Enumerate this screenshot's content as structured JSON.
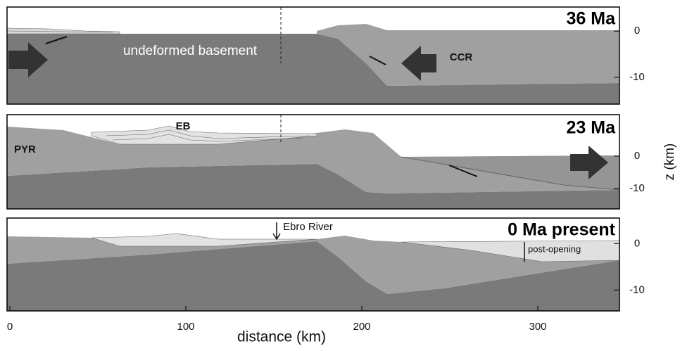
{
  "chart_data": [
    {
      "type": "section",
      "title": "36 Ma",
      "annotations": [
        "undeformed basement",
        "CCR"
      ],
      "xlim": [
        -1.6,
        346.4
      ],
      "ylim": [
        -15.8,
        5.2
      ],
      "yticks": [
        0,
        -10
      ]
    },
    {
      "type": "section",
      "title": "23 Ma",
      "annotations": [
        "EB",
        "PYR"
      ],
      "xlim": [
        -1.6,
        346.4
      ],
      "ylim": [
        -16.3,
        12.8
      ],
      "yticks": [
        0,
        -10
      ],
      "ylabel": "z (km)"
    },
    {
      "type": "section",
      "title": "0 Ma present",
      "annotations": [
        "Ebro River",
        "post-opening"
      ],
      "xlim": [
        -1.6,
        346.4
      ],
      "ylim": [
        -14.5,
        5.5
      ],
      "yticks": [
        0,
        -10
      ],
      "xticks": [
        0,
        100,
        200,
        300
      ],
      "xlabel": "distance (km)"
    }
  ]
}
